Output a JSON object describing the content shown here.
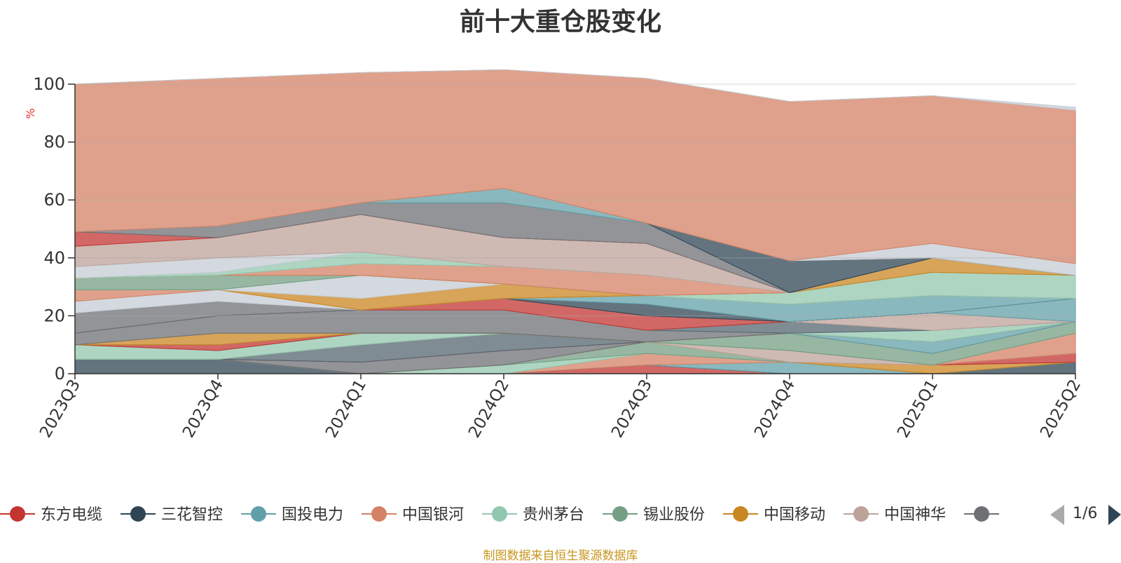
{
  "title": "前十大重仓股变化",
  "source": "制图数据来自恒生聚源数据库",
  "legend_page": "1/6",
  "chart_data": {
    "type": "area",
    "stacked": true,
    "ylabel": "%",
    "ylim": [
      0,
      100
    ],
    "yticks": [
      0,
      20,
      40,
      60,
      80,
      100
    ],
    "grid": true,
    "legend_position": "bottom",
    "categories": [
      "2023Q3",
      "2023Q4",
      "2024Q1",
      "2024Q2",
      "2024Q3",
      "2024Q4",
      "2025Q1",
      "2025Q2"
    ],
    "series": [
      {
        "name": "东方电缆",
        "color": "#c23531",
        "values": [
          0,
          0,
          0,
          0,
          3,
          0,
          0,
          0
        ]
      },
      {
        "name": "三花智控",
        "color": "#2f4554",
        "values": [
          5,
          5,
          0,
          0,
          0,
          0,
          0,
          4
        ]
      },
      {
        "name": "国投电力",
        "color": "#61a0a8",
        "values": [
          0,
          0,
          0,
          0,
          0,
          4,
          0,
          0
        ]
      },
      {
        "name": "中国银河",
        "color": "#d48265",
        "values": [
          0,
          0,
          0,
          0,
          4,
          0,
          0,
          0
        ]
      },
      {
        "name": "贵州茅台",
        "color": "#91c7ae",
        "values": [
          0,
          0,
          0,
          3,
          0,
          0,
          0,
          0
        ]
      },
      {
        "name": "锡业股份",
        "color": "#749f83",
        "values": [
          0,
          0,
          0,
          0,
          4,
          0,
          0,
          0
        ]
      },
      {
        "name": "中国移动",
        "color": "#ca8622",
        "values": [
          0,
          0,
          0,
          0,
          0,
          0,
          3,
          0
        ]
      },
      {
        "name": "中国神华",
        "color": "#bda29a",
        "values": [
          0,
          0,
          0,
          0,
          0,
          4,
          0,
          0
        ]
      },
      {
        "name": "",
        "color": "#6e7074",
        "values": [
          0,
          0,
          4,
          5,
          0,
          0,
          0,
          0
        ]
      },
      {
        "name": "",
        "color": "#c23531",
        "values": [
          0,
          0,
          0,
          0,
          0,
          0,
          0,
          3
        ]
      },
      {
        "name": "",
        "color": "#546570",
        "values": [
          0,
          0,
          6,
          6,
          0,
          0,
          0,
          0
        ]
      },
      {
        "name": "",
        "color": "#c4ccd3",
        "values": [
          0,
          0,
          0,
          0,
          0,
          0,
          0,
          0
        ]
      },
      {
        "name": "",
        "color": "#d48265",
        "values": [
          0,
          0,
          0,
          0,
          0,
          0,
          0,
          7
        ]
      },
      {
        "name": "",
        "color": "#91c7ae",
        "values": [
          5,
          3,
          4,
          0,
          0,
          0,
          0,
          0
        ]
      },
      {
        "name": "",
        "color": "#749f83",
        "values": [
          0,
          0,
          0,
          0,
          0,
          6,
          4,
          4
        ]
      },
      {
        "name": "",
        "color": "#c23531",
        "values": [
          0,
          2,
          0,
          0,
          0,
          0,
          0,
          0
        ]
      },
      {
        "name": "",
        "color": "#61a0a8",
        "values": [
          0,
          0,
          0,
          0,
          0,
          0,
          4,
          0
        ]
      },
      {
        "name": "",
        "color": "#ca8622",
        "values": [
          0,
          4,
          0,
          0,
          0,
          0,
          0,
          0
        ]
      },
      {
        "name": "",
        "color": "#6e7074",
        "values": [
          4,
          6,
          8,
          8,
          4,
          0,
          0,
          0
        ]
      },
      {
        "name": "",
        "color": "#91c7ae",
        "values": [
          0,
          0,
          0,
          0,
          0,
          0,
          4,
          0
        ]
      },
      {
        "name": "",
        "color": "#546570",
        "values": [
          0,
          0,
          0,
          0,
          0,
          4,
          0,
          0
        ]
      },
      {
        "name": "",
        "color": "#bda29a",
        "values": [
          0,
          0,
          0,
          0,
          0,
          0,
          6,
          0
        ]
      },
      {
        "name": "",
        "color": "#61a0a8",
        "values": [
          0,
          0,
          0,
          0,
          0,
          0,
          0,
          8
        ]
      },
      {
        "name": "",
        "color": "#c23531",
        "values": [
          0,
          0,
          0,
          4,
          5,
          0,
          0,
          0
        ]
      },
      {
        "name": "",
        "color": "#2f4554",
        "values": [
          0,
          0,
          0,
          0,
          4,
          0,
          0,
          0
        ]
      },
      {
        "name": "",
        "color": "#61a0a8",
        "values": [
          0,
          0,
          0,
          0,
          3,
          6,
          6,
          0
        ]
      },
      {
        "name": "",
        "color": "#6e7074",
        "values": [
          7,
          5,
          0,
          0,
          0,
          0,
          0,
          0
        ]
      },
      {
        "name": "",
        "color": "#c4ccd3",
        "values": [
          4,
          4,
          0,
          0,
          0,
          0,
          0,
          0
        ]
      },
      {
        "name": "",
        "color": "#d48265",
        "values": [
          4,
          0,
          0,
          0,
          0,
          0,
          0,
          0
        ]
      },
      {
        "name": "",
        "color": "#ca8622",
        "values": [
          0,
          0,
          4,
          5,
          0,
          0,
          0,
          0
        ]
      },
      {
        "name": "",
        "color": "#c4ccd3",
        "values": [
          0,
          0,
          8,
          0,
          0,
          0,
          0,
          0
        ]
      },
      {
        "name": "",
        "color": "#91c7ae",
        "values": [
          0,
          0,
          0,
          0,
          0,
          4,
          8,
          8
        ]
      },
      {
        "name": "",
        "color": "#749f83",
        "values": [
          4,
          5,
          0,
          0,
          0,
          0,
          0,
          0
        ]
      },
      {
        "name": "",
        "color": "#ca8622",
        "values": [
          0,
          0,
          0,
          0,
          0,
          0,
          5,
          0
        ]
      },
      {
        "name": "",
        "color": "#d48265",
        "values": [
          0,
          0,
          4,
          6,
          7,
          0,
          0,
          0
        ]
      },
      {
        "name": "",
        "color": "#91c7ae",
        "values": [
          0,
          1,
          4,
          0,
          0,
          0,
          0,
          0
        ]
      },
      {
        "name": "",
        "color": "#c4ccd3",
        "values": [
          4,
          5,
          0,
          0,
          0,
          0,
          0,
          0
        ]
      },
      {
        "name": "",
        "color": "#bda29a",
        "values": [
          7,
          7,
          13,
          10,
          11,
          0,
          0,
          0
        ]
      },
      {
        "name": "",
        "color": "#c23531",
        "values": [
          5,
          0,
          0,
          0,
          0,
          0,
          0,
          0
        ]
      },
      {
        "name": "",
        "color": "#6e7074",
        "values": [
          0,
          4,
          4,
          12,
          7,
          0,
          0,
          0
        ]
      },
      {
        "name": "",
        "color": "#61a0a8",
        "values": [
          0,
          0,
          0,
          5,
          0,
          0,
          0,
          0
        ]
      },
      {
        "name": "",
        "color": "#2f4554",
        "values": [
          0,
          0,
          0,
          0,
          0,
          11,
          0,
          0
        ]
      },
      {
        "name": "",
        "color": "#c4ccd3",
        "values": [
          0,
          0,
          0,
          0,
          0,
          0,
          5,
          4
        ]
      },
      {
        "name": "",
        "color": "#d48265",
        "values": [
          51,
          51,
          45,
          41,
          50,
          55,
          51,
          53
        ]
      },
      {
        "name": "",
        "color": "#c4ccd3",
        "values": [
          0,
          0,
          0,
          0,
          0,
          0,
          0,
          1
        ]
      }
    ]
  }
}
